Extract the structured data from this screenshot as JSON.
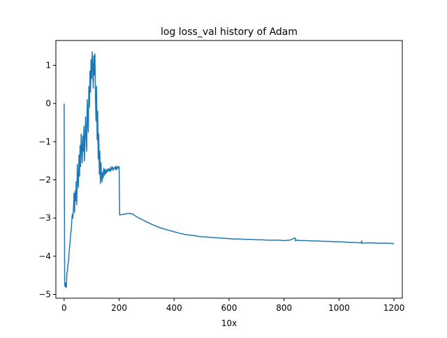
{
  "chart_data": {
    "type": "line",
    "title": "log loss_val history of Adam",
    "xlabel": "10x",
    "ylabel": "",
    "xlim": [
      -30,
      1230
    ],
    "ylim": [
      -5.1,
      1.65
    ],
    "xticks": [
      0,
      200,
      400,
      600,
      800,
      1000,
      1200
    ],
    "xtick_labels": [
      "0",
      "200",
      "400",
      "600",
      "800",
      "1000",
      "1200"
    ],
    "yticks": [
      -5,
      -4,
      -3,
      -2,
      -1,
      0,
      1
    ],
    "ytick_labels": [
      "−5",
      "−4",
      "−3",
      "−2",
      "−1",
      "0",
      "1"
    ],
    "grid": false,
    "legend": "none",
    "line_color": "#1f77b4",
    "series": [
      {
        "x": [
          0,
          2,
          4,
          6,
          8,
          10,
          12,
          14,
          16,
          18,
          20,
          22,
          24,
          26,
          28,
          30,
          32,
          34,
          36,
          38,
          40,
          42,
          44,
          46,
          48,
          50,
          52,
          54,
          56,
          58,
          60,
          62,
          64,
          66,
          68,
          70,
          72,
          74,
          76,
          78,
          80,
          82,
          84,
          86,
          88,
          90,
          92,
          94,
          96,
          98,
          100,
          102,
          104,
          106,
          108,
          110,
          112,
          114,
          116,
          118,
          120,
          122,
          124,
          126,
          128,
          130,
          132,
          134,
          136,
          138,
          140,
          142,
          144,
          146,
          148,
          150,
          152,
          154,
          156,
          158,
          160,
          162,
          164,
          166,
          168,
          170,
          172,
          174,
          176,
          178,
          180,
          182,
          184,
          186,
          188,
          190,
          192,
          194,
          196,
          198,
          200,
          202,
          210,
          220,
          230,
          240,
          250,
          260,
          280,
          300,
          320,
          340,
          360,
          380,
          400,
          420,
          440,
          460,
          480,
          500,
          520,
          540,
          560,
          580,
          600,
          620,
          640,
          660,
          680,
          700,
          720,
          740,
          760,
          780,
          800,
          820,
          840,
          842,
          844,
          860,
          880,
          900,
          920,
          940,
          960,
          980,
          1000,
          1020,
          1040,
          1060,
          1080,
          1082,
          1084,
          1100,
          1120,
          1140,
          1160,
          1180,
          1200
        ],
        "y": [
          0.0,
          -4.75,
          -4.8,
          -4.7,
          -4.82,
          -4.45,
          -4.38,
          -4.2,
          -4.15,
          -3.9,
          -3.75,
          -3.6,
          -3.4,
          -3.3,
          -3.05,
          -2.9,
          -3.0,
          -2.75,
          -2.35,
          -2.85,
          -2.3,
          -2.55,
          -2.05,
          -2.65,
          -1.6,
          -1.95,
          -2.2,
          -1.35,
          -1.9,
          -1.1,
          -1.65,
          -0.8,
          -1.15,
          -1.55,
          -0.85,
          -1.25,
          -0.6,
          -1.5,
          -0.95,
          -0.35,
          -0.8,
          -1.25,
          0.1,
          -0.4,
          -0.75,
          0.45,
          -0.1,
          0.85,
          0.3,
          1.15,
          0.65,
          1.35,
          0.95,
          0.4,
          1.25,
          0.75,
          1.3,
          0.15,
          -0.45,
          0.45,
          -0.95,
          -0.2,
          -1.45,
          -0.8,
          -1.85,
          -1.25,
          -2.1,
          -1.55,
          -1.95,
          -2.05,
          -1.8,
          -1.95,
          -1.7,
          -1.88,
          -1.72,
          -1.85,
          -1.75,
          -1.82,
          -1.72,
          -1.76,
          -1.78,
          -1.7,
          -1.76,
          -1.72,
          -1.78,
          -1.66,
          -1.74,
          -1.7,
          -1.66,
          -1.75,
          -1.72,
          -1.68,
          -1.7,
          -1.66,
          -1.74,
          -1.64,
          -1.72,
          -1.68,
          -1.66,
          -1.7,
          -1.65,
          -2.92,
          -2.91,
          -2.9,
          -2.88,
          -2.88,
          -2.9,
          -2.95,
          -3.03,
          -3.1,
          -3.17,
          -3.23,
          -3.28,
          -3.32,
          -3.36,
          -3.4,
          -3.43,
          -3.45,
          -3.47,
          -3.49,
          -3.5,
          -3.51,
          -3.52,
          -3.53,
          -3.54,
          -3.55,
          -3.55,
          -3.56,
          -3.56,
          -3.57,
          -3.57,
          -3.58,
          -3.58,
          -3.58,
          -3.59,
          -3.58,
          -3.52,
          -3.6,
          -3.58,
          -3.59,
          -3.59,
          -3.6,
          -3.6,
          -3.61,
          -3.61,
          -3.62,
          -3.62,
          -3.63,
          -3.64,
          -3.64,
          -3.65,
          -3.6,
          -3.66,
          -3.65,
          -3.65,
          -3.66,
          -3.66,
          -3.66,
          -3.67
        ]
      }
    ]
  }
}
